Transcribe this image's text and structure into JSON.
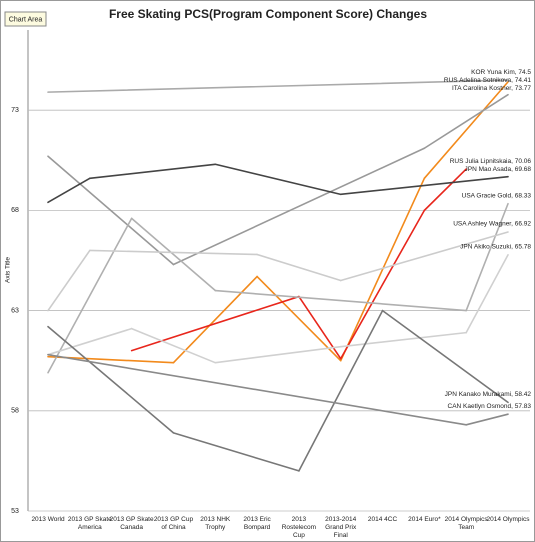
{
  "chart_data": {
    "type": "line",
    "title": "Free Skating PCS(Program Component Score) Changes",
    "tooltip": "Chart Area",
    "y_label": "Axis Title",
    "categories": [
      "2013 World",
      "2013 GP Skate America",
      "2013 GP Skate Canada",
      "2013 GP Cup of China",
      "2013 NHK Trophy",
      "2013 Eric Bompard",
      "2013 Rostelecom Cup",
      "2013-2014 Grand Prix Final",
      "2014 4CC",
      "2014 Euro*",
      "2014 Olympics Team",
      "2014 Olympics"
    ],
    "ylim": [
      53,
      77
    ],
    "yticks": [
      53,
      58,
      63,
      68,
      73
    ],
    "grid": true,
    "connect_gaps": true,
    "series": [
      {
        "color": "#aaaaaa",
        "values": [
          73.9,
          null,
          null,
          null,
          null,
          null,
          null,
          null,
          null,
          null,
          null,
          74.5
        ],
        "value_labels": [
          null,
          null,
          null,
          null,
          null,
          null,
          null,
          null,
          null,
          null,
          null,
          "KOR Yuna Kim, 74.5"
        ]
      },
      {
        "color": "#f28a1c",
        "values": [
          60.7,
          null,
          null,
          60.4,
          null,
          64.7,
          null,
          60.5,
          null,
          69.6,
          null,
          74.41
        ],
        "value_labels": [
          null,
          null,
          null,
          null,
          null,
          null,
          null,
          null,
          null,
          null,
          null,
          "RUS Adelina Sotnikova, 74.41"
        ]
      },
      {
        "color": "#999999",
        "values": [
          70.7,
          null,
          null,
          65.3,
          null,
          null,
          null,
          null,
          null,
          71.1,
          null,
          73.77
        ],
        "value_labels": [
          null,
          null,
          null,
          null,
          null,
          null,
          null,
          null,
          null,
          null,
          null,
          "ITA Carolina Kostner, 73.77"
        ]
      },
      {
        "color": "#e8261c",
        "values": [
          null,
          null,
          61.0,
          null,
          null,
          null,
          63.7,
          60.6,
          null,
          68.0,
          70.06,
          null
        ],
        "value_labels": [
          null,
          null,
          null,
          null,
          null,
          null,
          null,
          null,
          null,
          null,
          "RUS Julia Lipnitskaia, 70.06",
          null
        ]
      },
      {
        "color": "#444444",
        "values": [
          68.4,
          69.6,
          null,
          null,
          70.3,
          null,
          null,
          68.8,
          null,
          null,
          null,
          69.68
        ],
        "value_labels": [
          null,
          null,
          null,
          null,
          null,
          null,
          null,
          null,
          null,
          null,
          null,
          "JPN Mao Asada, 69.68"
        ]
      },
      {
        "color": "#b0b0b0",
        "values": [
          59.9,
          null,
          67.6,
          null,
          64.0,
          null,
          null,
          null,
          null,
          null,
          63.0,
          68.33
        ],
        "value_labels": [
          null,
          null,
          null,
          null,
          null,
          null,
          null,
          null,
          null,
          null,
          null,
          "USA Gracie Gold, 68.33"
        ]
      },
      {
        "color": "#cccccc",
        "values": [
          63.0,
          66.0,
          null,
          null,
          null,
          65.8,
          null,
          64.5,
          null,
          null,
          null,
          66.92
        ],
        "value_labels": [
          null,
          null,
          null,
          null,
          null,
          null,
          null,
          null,
          null,
          null,
          null,
          "USA Ashley Wagner, 66.92"
        ]
      },
      {
        "color": "#d0d0d0",
        "values": [
          60.8,
          null,
          62.1,
          null,
          60.4,
          null,
          null,
          61.2,
          null,
          null,
          61.9,
          65.78
        ],
        "value_labels": [
          null,
          null,
          null,
          null,
          null,
          null,
          null,
          null,
          null,
          null,
          null,
          "JPN Akiko Suzuki, 65.78"
        ]
      },
      {
        "color": "#777777",
        "values": [
          62.2,
          null,
          null,
          56.9,
          null,
          null,
          55.0,
          null,
          63.0,
          null,
          null,
          58.42
        ],
        "value_labels": [
          null,
          null,
          null,
          null,
          null,
          null,
          null,
          null,
          null,
          null,
          null,
          "JPN Kanako Murakami, 58.42"
        ]
      },
      {
        "color": "#8a8a8a",
        "values": [
          60.8,
          null,
          null,
          null,
          null,
          null,
          null,
          null,
          null,
          null,
          57.3,
          57.83
        ],
        "value_labels": [
          null,
          null,
          null,
          null,
          null,
          null,
          null,
          null,
          null,
          null,
          null,
          "CAN Kaetlyn Osmond, 57.83"
        ]
      }
    ]
  }
}
